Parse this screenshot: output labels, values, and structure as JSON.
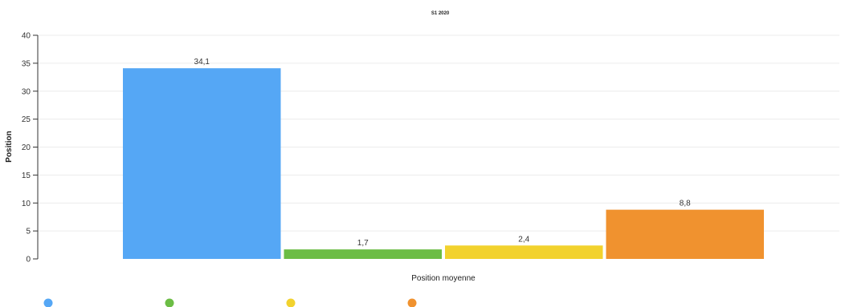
{
  "chart_data": {
    "type": "bar",
    "title": "S1 2020",
    "xlabel": "Position moyenne",
    "ylabel": "Position",
    "ylim": [
      0,
      40
    ],
    "yticks": [
      0,
      5,
      10,
      15,
      20,
      25,
      30,
      35,
      40
    ],
    "grid": true,
    "legend_position": "bottom-left",
    "categories": [
      "Position moyenne"
    ],
    "series": [
      {
        "value": 34.1,
        "label": "34,1",
        "color": "#55A7F5"
      },
      {
        "value": 1.7,
        "label": "1,7",
        "color": "#6CBD45"
      },
      {
        "value": 2.4,
        "label": "2,4",
        "color": "#F2D22E"
      },
      {
        "value": 8.8,
        "label": "8,8",
        "color": "#F0922F"
      }
    ]
  }
}
